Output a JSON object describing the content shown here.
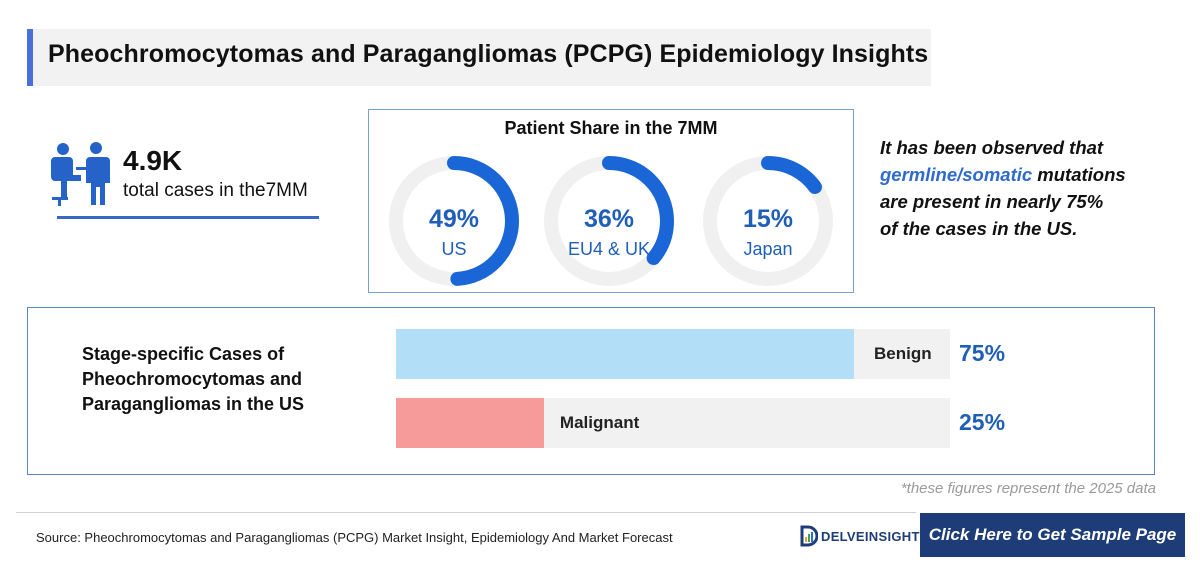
{
  "title": "Pheochromocytomas and Paragangliomas (PCPG) Epidemiology Insights",
  "total_cases": {
    "value": "4.9K",
    "label": "total cases in the7MM",
    "icon": "doctor-patient-icon"
  },
  "patient_share": {
    "title": "Patient Share in the 7MM",
    "colors": {
      "arc": "#1a66d6",
      "track": "#f0f0f0"
    }
  },
  "observation": {
    "line1": "It has been observed that",
    "highlight": "germline/somatic",
    "line2_rest": " mutations",
    "line3": "are present in nearly 75%",
    "line4": "of the cases in the US."
  },
  "stage": {
    "title": "Stage-specific Cases of Pheochromocytomas and Paragangliomas in the US",
    "colors": {
      "benign": "#b3def8",
      "malignant": "#f79a9a",
      "track": "#f1f1f1"
    }
  },
  "note": "*these figures represent the 2025 data",
  "footer": {
    "source": "Source: Pheochromocytomas and Paragangliomas (PCPG) Market Insight, Epidemiology And Market Forecast",
    "logo": "DELVEINSIGHT",
    "cta": "Click Here to Get Sample Page"
  },
  "chart_data": [
    {
      "type": "pie",
      "title": "Patient Share in the 7MM",
      "categories": [
        "US",
        "EU4 & UK",
        "Japan"
      ],
      "values": [
        49,
        36,
        15
      ],
      "value_labels": [
        "49%",
        "36%",
        "15%"
      ]
    },
    {
      "type": "bar",
      "title": "Stage-specific Cases of Pheochromocytomas and Paragangliomas in the US",
      "categories": [
        "Benign",
        "Malignant"
      ],
      "values": [
        75,
        25
      ],
      "value_labels": [
        "75%",
        "25%"
      ]
    }
  ]
}
